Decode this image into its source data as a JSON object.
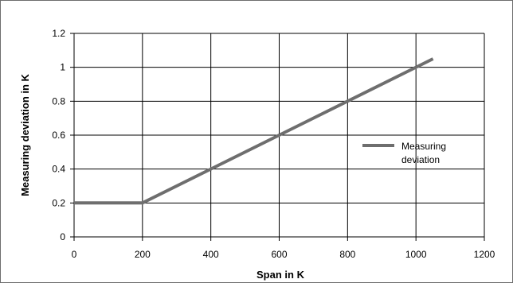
{
  "chart_data": {
    "type": "line",
    "title": "",
    "xlabel": "Span in K",
    "ylabel": "Measuring deviation in K",
    "xlim": [
      0,
      1200
    ],
    "ylim": [
      0,
      1.2
    ],
    "x_ticks": [
      "0",
      "200",
      "400",
      "600",
      "800",
      "1000",
      "1200"
    ],
    "y_ticks": [
      "0",
      "0.2",
      "0.4",
      "0.6",
      "0.8",
      "1",
      "1.2"
    ],
    "grid": true,
    "legend_position": "right",
    "series": [
      {
        "name": "Measuring deviation",
        "color": "#6e6e6e",
        "x": [
          0,
          200,
          1050
        ],
        "y": [
          0.2,
          0.2,
          1.05
        ]
      }
    ],
    "legend": [
      "Measuring",
      "deviation"
    ]
  }
}
